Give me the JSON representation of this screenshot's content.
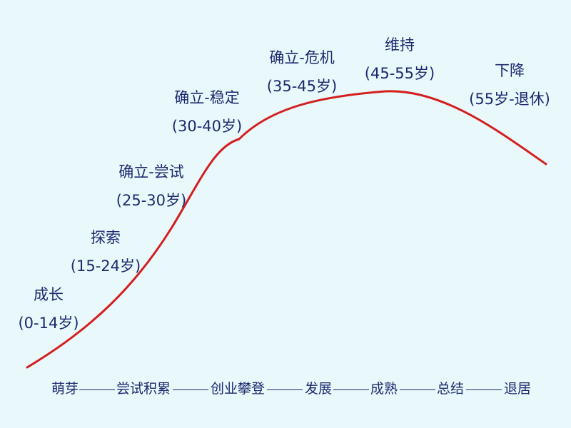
{
  "diagram": {
    "line_color": "#d41f1f",
    "text_color": "#1e2a6e",
    "background": "#e8f8fb"
  },
  "stages": [
    {
      "name": "成长",
      "range": "(0-14岁)"
    },
    {
      "name": "探索",
      "range": "(15-24岁)"
    },
    {
      "name": "确立-尝试",
      "range": "(25-30岁)"
    },
    {
      "name": "确立-稳定",
      "range": "(30-40岁)"
    },
    {
      "name": "确立-危机",
      "range": "(35-45岁)"
    },
    {
      "name": "维持",
      "range": "(45-55岁)"
    },
    {
      "name": "下降",
      "range": "(55岁-退休)"
    }
  ],
  "phases": [
    "萌芽",
    "尝试积累",
    "创业攀登",
    "发展",
    "成熟",
    "总结",
    "退居"
  ]
}
